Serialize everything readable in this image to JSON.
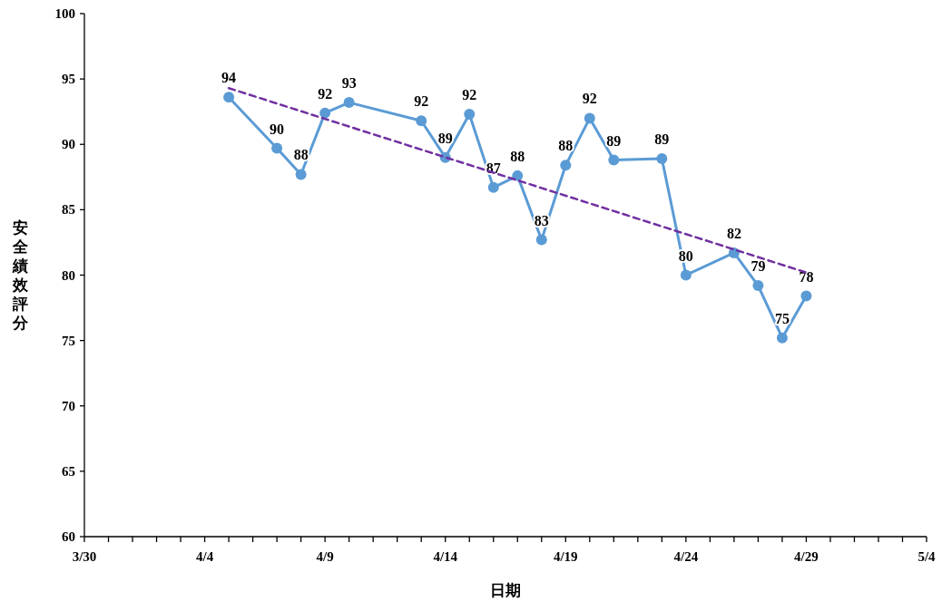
{
  "chart_data": {
    "type": "line",
    "xlabel": "日期",
    "ylabel": "安全績效評分",
    "xlim": [
      "--03-30",
      "--05-04"
    ],
    "xticks": [
      {
        "value": "--03-30",
        "label": "3/30"
      },
      {
        "value": "--03-31",
        "label": null
      },
      {
        "value": "--04-01",
        "label": null
      },
      {
        "value": "--04-02",
        "label": null
      },
      {
        "value": "--04-03",
        "label": null
      },
      {
        "value": "--04-04",
        "label": "4/4"
      },
      {
        "value": "--04-05",
        "label": null
      },
      {
        "value": "--04-06",
        "label": null
      },
      {
        "value": "--04-07",
        "label": null
      },
      {
        "value": "--04-08",
        "label": null
      },
      {
        "value": "--04-09",
        "label": "4/9"
      },
      {
        "value": "--04-10",
        "label": null
      },
      {
        "value": "--04-11",
        "label": null
      },
      {
        "value": "--04-12",
        "label": null
      },
      {
        "value": "--04-13",
        "label": null
      },
      {
        "value": "--04-14",
        "label": "4/14"
      },
      {
        "value": "--04-15",
        "label": null
      },
      {
        "value": "--04-16",
        "label": null
      },
      {
        "value": "--04-17",
        "label": null
      },
      {
        "value": "--04-18",
        "label": null
      },
      {
        "value": "--04-19",
        "label": "4/19"
      },
      {
        "value": "--04-20",
        "label": null
      },
      {
        "value": "--04-21",
        "label": null
      },
      {
        "value": "--04-22",
        "label": null
      },
      {
        "value": "--04-23",
        "label": null
      },
      {
        "value": "--04-24",
        "label": "4/24"
      },
      {
        "value": "--04-25",
        "label": null
      },
      {
        "value": "--04-26",
        "label": null
      },
      {
        "value": "--04-27",
        "label": null
      },
      {
        "value": "--04-28",
        "label": null
      },
      {
        "value": "--04-29",
        "label": "4/29"
      },
      {
        "value": "--04-30",
        "label": null
      },
      {
        "value": "--05-01",
        "label": null
      },
      {
        "value": "--05-02",
        "label": null
      },
      {
        "value": "--05-03",
        "label": null
      },
      {
        "value": "--05-04",
        "label": "5/4"
      }
    ],
    "ylim": [
      60,
      100
    ],
    "yticks": [
      60,
      65,
      70,
      75,
      80,
      85,
      90,
      95,
      100
    ],
    "grid": false,
    "series": [
      {
        "color": "#5b9bd5",
        "marker": "circle",
        "line_style": "solid",
        "x": [
          "--04-05",
          "--04-07",
          "--04-08",
          "--04-09",
          "--04-10",
          "--04-13",
          "--04-14",
          "--04-15",
          "--04-16",
          "--04-17",
          "--04-18",
          "--04-19",
          "--04-20",
          "--04-21",
          "--04-23",
          "--04-24",
          "--04-26",
          "--04-27",
          "--04-28",
          "--04-29"
        ],
        "values": [
          93.6,
          89.7,
          87.7,
          92.4,
          93.2,
          91.8,
          89.0,
          92.3,
          86.7,
          87.6,
          82.7,
          88.4,
          92.0,
          88.8,
          88.9,
          80.0,
          81.7,
          79.2,
          75.2,
          78.4
        ],
        "value_labels": [
          "94",
          "90",
          "88",
          "92",
          "93",
          "92",
          "89",
          "92",
          "87",
          "88",
          "83",
          "88",
          "92",
          "89",
          "89",
          "80",
          "82",
          "79",
          "75",
          "78"
        ]
      },
      {
        "color": "#7030a0",
        "marker": "none",
        "line_style": "dashed",
        "x": [
          "--04-05",
          "--04-29"
        ],
        "values": [
          94.3,
          80.2
        ]
      }
    ]
  }
}
